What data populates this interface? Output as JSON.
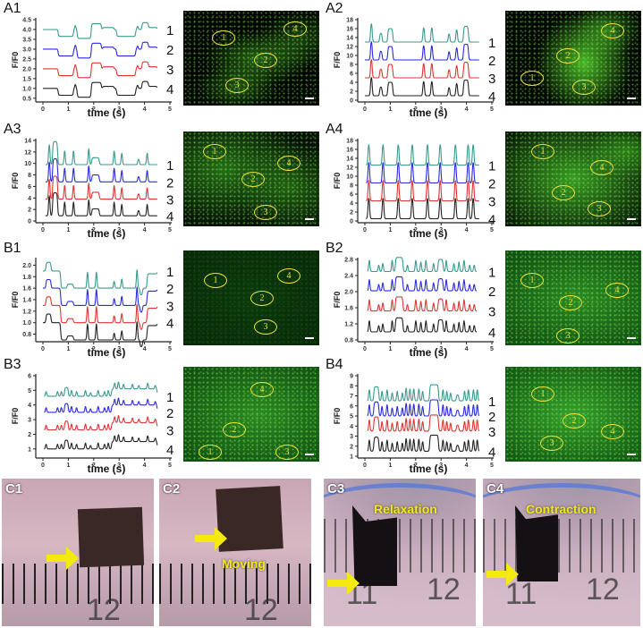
{
  "chart_data": [
    {
      "panel": "A1",
      "type": "line",
      "xlabel": "time (s)",
      "ylabel": "F/F0",
      "xlim": [
        0,
        5
      ],
      "xticks": [
        0,
        1,
        2,
        3,
        4,
        5
      ],
      "ylim": [
        0.4,
        4.5
      ],
      "yticks": [
        "0.5",
        "1.0",
        "1.5",
        "2.0",
        "2.5",
        "3.0",
        "3.5",
        "4.0",
        "4.5"
      ],
      "time_range": [
        0,
        4.5
      ],
      "series": [
        {
          "name": "1",
          "color": "#3a9a8e",
          "baseline": 4.0
        },
        {
          "name": "2",
          "color": "#2a2ae0",
          "baseline": 3.0
        },
        {
          "name": "3",
          "color": "#e03434",
          "baseline": 2.0
        },
        {
          "name": "4",
          "color": "#222222",
          "baseline": 1.0
        }
      ],
      "events_start_delta_duration": [
        [
          0.6,
          -0.35,
          0.6
        ],
        [
          1.25,
          0.25,
          0.05
        ],
        [
          1.35,
          -0.45,
          0.55
        ],
        [
          1.9,
          0.3,
          0.4
        ],
        [
          2.35,
          0.1,
          0.45
        ],
        [
          2.9,
          -0.35,
          0.75
        ],
        [
          3.7,
          0.2,
          0.05
        ],
        [
          3.9,
          0.35,
          0.25
        ],
        [
          4.15,
          0.1,
          0.35
        ]
      ],
      "image": {
        "rois": [
          "1",
          "2",
          "3",
          "4"
        ],
        "brightness": "dim"
      }
    },
    {
      "panel": "A2",
      "type": "line",
      "xlabel": "time (s)",
      "ylabel": "F/F0",
      "xlim": [
        0,
        5
      ],
      "xticks": [
        0,
        1,
        2,
        3,
        4,
        5
      ],
      "ylim": [
        0,
        18
      ],
      "yticks": [
        "0",
        "2",
        "4",
        "6",
        "8",
        "10",
        "12",
        "14",
        "16",
        "18"
      ],
      "time_range": [
        0,
        4.5
      ],
      "series": [
        {
          "name": "1",
          "color": "#3a9a8e",
          "baseline": 13
        },
        {
          "name": "2",
          "color": "#2a2ae0",
          "baseline": 9
        },
        {
          "name": "3",
          "color": "#e03434",
          "baseline": 5
        },
        {
          "name": "4",
          "color": "#222222",
          "baseline": 1
        }
      ],
      "events_start_delta_duration": [
        [
          0.22,
          4.5,
          0.07
        ],
        [
          0.58,
          2,
          0.1
        ],
        [
          0.9,
          3,
          0.2
        ],
        [
          2.28,
          3.5,
          0.07
        ],
        [
          2.6,
          3.5,
          0.07
        ],
        [
          3.28,
          2,
          0.07
        ],
        [
          3.58,
          3,
          0.07
        ],
        [
          3.88,
          3.5,
          0.2
        ]
      ],
      "image": {
        "rois": [
          "1",
          "2",
          "3",
          "4"
        ],
        "brightness": "patchy"
      }
    },
    {
      "panel": "A3",
      "type": "line",
      "xlabel": "time (s)",
      "ylabel": "F/F0",
      "xlim": [
        0,
        5
      ],
      "xticks": [
        0,
        1,
        2,
        3,
        4,
        5
      ],
      "ylim": [
        0,
        14
      ],
      "yticks": [
        "0",
        "2",
        "4",
        "6",
        "8",
        "10",
        "12",
        "14"
      ],
      "time_range": [
        0.1,
        4.5
      ],
      "series": [
        {
          "name": "1",
          "color": "#3a9a8e",
          "baseline": 9.8
        },
        {
          "name": "2",
          "color": "#2a2ae0",
          "baseline": 6.8
        },
        {
          "name": "3",
          "color": "#e03434",
          "baseline": 3.8
        },
        {
          "name": "4",
          "color": "#222222",
          "baseline": 0.9
        }
      ],
      "events_start_delta_duration": [
        [
          0.22,
          4,
          0.06
        ],
        [
          0.38,
          4,
          0.2
        ],
        [
          0.83,
          3,
          0.05
        ],
        [
          1.18,
          3,
          0.05
        ],
        [
          1.78,
          3.5,
          0.05
        ],
        [
          1.92,
          1.2,
          0.3
        ],
        [
          2.78,
          3,
          0.05
        ],
        [
          3.08,
          2.5,
          0.05
        ],
        [
          3.73,
          1,
          0.07
        ],
        [
          4.08,
          2.5,
          0.05
        ]
      ],
      "image": {
        "rois": [
          "1",
          "2",
          "3",
          "4"
        ],
        "brightness": "medium"
      }
    },
    {
      "panel": "A4",
      "type": "line",
      "xlabel": "time (s)",
      "ylabel": "F/F0",
      "xlim": [
        0,
        5
      ],
      "xticks": [
        0,
        1,
        2,
        3,
        4,
        5
      ],
      "ylim": [
        0,
        18
      ],
      "yticks": [
        "0",
        "2",
        "4",
        "6",
        "8",
        "10",
        "12",
        "14",
        "16",
        "18"
      ],
      "time_range": [
        0.05,
        4.5
      ],
      "series": [
        {
          "name": "1",
          "color": "#3a9a8e",
          "baseline": 12.5
        },
        {
          "name": "2",
          "color": "#2a2ae0",
          "baseline": 8.5
        },
        {
          "name": "3",
          "color": "#e03434",
          "baseline": 4.5
        },
        {
          "name": "4",
          "color": "#222222",
          "baseline": 0.5
        }
      ],
      "events_start_delta_duration": [
        [
          0.12,
          5,
          0.07
        ],
        [
          0.68,
          5,
          0.07
        ],
        [
          1.28,
          5,
          0.07
        ],
        [
          1.83,
          5,
          0.07
        ],
        [
          2.43,
          5,
          0.07
        ],
        [
          2.93,
          5,
          0.07
        ],
        [
          3.53,
          5,
          0.07
        ],
        [
          4.03,
          5,
          0.07
        ],
        [
          4.23,
          5,
          0.07
        ]
      ],
      "image": {
        "rois": [
          "1",
          "2",
          "3",
          "4"
        ],
        "brightness": "bright"
      }
    },
    {
      "panel": "B1",
      "type": "line",
      "xlabel": "time (s)",
      "ylabel": "F/F0",
      "xlim": [
        0,
        5
      ],
      "xticks": [
        0,
        1,
        2,
        3,
        4,
        5
      ],
      "ylim": [
        0.7,
        2.1
      ],
      "yticks": [
        "0.8",
        "1.0",
        "1.2",
        "1.4",
        "1.6",
        "1.8",
        "2.0"
      ],
      "time_range": [
        0,
        4.5
      ],
      "series": [
        {
          "name": "1",
          "color": "#3a9a8e",
          "baseline": 1.9
        },
        {
          "name": "2",
          "color": "#2a2ae0",
          "baseline": 1.6
        },
        {
          "name": "3",
          "color": "#e03434",
          "baseline": 1.3
        },
        {
          "name": "4",
          "color": "#222222",
          "baseline": 1.0
        }
      ],
      "events_start_delta_duration": [
        [
          0.12,
          0.15,
          0.2
        ],
        [
          0.7,
          -0.3,
          3.4
        ],
        [
          0.95,
          0.07,
          0.25
        ],
        [
          1.73,
          0.35,
          0.05
        ],
        [
          2.08,
          0.35,
          0.05
        ],
        [
          2.78,
          0.15,
          0.05
        ],
        [
          3.08,
          0.2,
          0.05
        ],
        [
          3.68,
          0.4,
          0.05
        ],
        [
          3.82,
          -0.12,
          0.1
        ],
        [
          4.1,
          -0.05,
          0.4
        ]
      ],
      "image": {
        "rois": [
          "1",
          "2",
          "3",
          "4"
        ],
        "brightness": "very-dim"
      }
    },
    {
      "panel": "B2",
      "type": "line",
      "xlabel": "time (s)",
      "ylabel": "F/F0",
      "xlim": [
        0,
        5
      ],
      "xticks": [
        0,
        1,
        2,
        3,
        4,
        5
      ],
      "ylim": [
        0.8,
        2.8
      ],
      "yticks": [
        "0.8",
        "1.2",
        "1.6",
        "2.0",
        "2.4",
        "2.8"
      ],
      "time_range": [
        0.1,
        4.4
      ],
      "series": [
        {
          "name": "1",
          "color": "#3a9a8e",
          "baseline": 2.5
        },
        {
          "name": "2",
          "color": "#2a2ae0",
          "baseline": 2.02
        },
        {
          "name": "3",
          "color": "#e03434",
          "baseline": 1.52
        },
        {
          "name": "4",
          "color": "#222222",
          "baseline": 1.0
        }
      ],
      "events_start_delta_duration": [
        [
          0.15,
          0.35,
          0.05
        ],
        [
          0.52,
          0.2,
          0.05
        ],
        [
          0.68,
          0.25,
          0.05
        ],
        [
          1.05,
          0.35,
          0.05
        ],
        [
          1.2,
          0.35,
          0.3
        ],
        [
          1.65,
          0.2,
          0.05
        ],
        [
          1.98,
          0.35,
          0.05
        ],
        [
          2.18,
          0.3,
          0.05
        ],
        [
          2.38,
          0.35,
          0.05
        ],
        [
          2.68,
          0.25,
          0.05
        ],
        [
          2.88,
          0.3,
          0.2
        ],
        [
          3.18,
          0.35,
          0.05
        ],
        [
          3.48,
          0.25,
          0.05
        ],
        [
          3.68,
          0.3,
          0.05
        ],
        [
          3.88,
          0.35,
          0.05
        ],
        [
          4.1,
          0.2,
          0.05
        ],
        [
          4.28,
          0.2,
          0.05
        ]
      ],
      "image": {
        "rois": [
          "1",
          "2",
          "3",
          "4"
        ],
        "brightness": "medium-uniform"
      }
    },
    {
      "panel": "B3",
      "type": "line",
      "xlabel": "time (s)",
      "ylabel": "F/F0",
      "xlim": [
        0,
        5
      ],
      "xticks": [
        0,
        1,
        2,
        3,
        4,
        5
      ],
      "ylim": [
        0.5,
        6
      ],
      "yticks": [
        "1",
        "2",
        "3",
        "4",
        "5",
        "6"
      ],
      "time_range": [
        0.05,
        4.5
      ],
      "series": [
        {
          "name": "1",
          "color": "#3a9a8e",
          "baseline": 4.6
        },
        {
          "name": "2",
          "color": "#2a2ae0",
          "baseline": 3.5
        },
        {
          "name": "3",
          "color": "#e03434",
          "baseline": 2.3
        },
        {
          "name": "4",
          "color": "#222222",
          "baseline": 1.0
        }
      ],
      "events_start_delta_duration": [
        [
          0.1,
          0.4,
          0.05
        ],
        [
          0.55,
          0.4,
          0.05
        ],
        [
          0.7,
          0.4,
          0.05
        ],
        [
          0.85,
          0.6,
          0.15
        ],
        [
          1.1,
          0.5,
          0.05
        ],
        [
          1.3,
          0.4,
          0.05
        ],
        [
          1.65,
          0.5,
          0.05
        ],
        [
          1.85,
          0.3,
          0.05
        ],
        [
          2.15,
          0.5,
          0.05
        ],
        [
          2.4,
          0.4,
          0.05
        ],
        [
          2.55,
          0.5,
          0.05
        ],
        [
          2.7,
          0.5,
          1.8
        ],
        [
          2.8,
          0.5,
          0.05
        ],
        [
          2.95,
          0.6,
          0.05
        ],
        [
          3.15,
          0.4,
          0.05
        ],
        [
          3.5,
          0.4,
          0.05
        ],
        [
          3.75,
          0.3,
          0.05
        ],
        [
          4.1,
          0.5,
          0.05
        ],
        [
          4.4,
          0.3,
          0.05
        ]
      ],
      "image": {
        "rois": [
          "1",
          "2",
          "3",
          "4"
        ],
        "brightness": "medium-uniform"
      }
    },
    {
      "panel": "B4",
      "type": "line",
      "xlabel": "time (s)",
      "ylabel": "F/F0",
      "xlim": [
        0,
        5
      ],
      "xticks": [
        0,
        1,
        2,
        3,
        4,
        5
      ],
      "ylim": [
        1,
        9
      ],
      "yticks": [
        "1",
        "2",
        "3",
        "4",
        "5",
        "6",
        "7",
        "8",
        "9"
      ],
      "time_range": [
        0.1,
        4.5
      ],
      "series": [
        {
          "name": "1",
          "color": "#3a9a8e",
          "baseline": 6.5
        },
        {
          "name": "2",
          "color": "#2a2ae0",
          "baseline": 5.0
        },
        {
          "name": "3",
          "color": "#e03434",
          "baseline": 3.5
        },
        {
          "name": "4",
          "color": "#222222",
          "baseline": 1.5
        }
      ],
      "events_start_delta_duration": [
        [
          0.15,
          1.4,
          0.05
        ],
        [
          0.35,
          1.4,
          0.2
        ],
        [
          0.65,
          1.2,
          0.05
        ],
        [
          0.85,
          1.4,
          0.05
        ],
        [
          1.05,
          1.0,
          0.05
        ],
        [
          1.25,
          1.2,
          0.05
        ],
        [
          1.45,
          1.0,
          0.05
        ],
        [
          1.6,
          1.6,
          0.05
        ],
        [
          1.75,
          1.5,
          0.05
        ],
        [
          1.9,
          1.5,
          0.05
        ],
        [
          2.1,
          1.5,
          0.05
        ],
        [
          2.25,
          1.2,
          0.05
        ],
        [
          2.55,
          1.6,
          0.35
        ],
        [
          3.05,
          1.4,
          0.05
        ],
        [
          3.2,
          1.2,
          0.05
        ],
        [
          3.35,
          1.0,
          0.05
        ],
        [
          3.6,
          0.6,
          0.1
        ],
        [
          3.9,
          1.2,
          0.05
        ],
        [
          4.05,
          1.4,
          0.05
        ],
        [
          4.25,
          1.4,
          0.05
        ],
        [
          4.4,
          1.4,
          0.05
        ]
      ],
      "image": {
        "rois": [
          "1",
          "2",
          "3",
          "4"
        ],
        "brightness": "bright-uniform"
      }
    }
  ],
  "photos": [
    {
      "label": "C1",
      "ruler_number": "12"
    },
    {
      "label": "C2",
      "caption": "Moving",
      "ruler_number": "12"
    },
    {
      "label": "C3",
      "caption": "Relaxation",
      "ruler_numbers": [
        "11",
        "12"
      ]
    },
    {
      "label": "C4",
      "caption": "Contraction",
      "ruler_numbers": [
        "11",
        "12"
      ]
    }
  ],
  "colors": {
    "roi": "#e8e23a",
    "arrow": "#f4ea10",
    "series1": "#3a9a8e",
    "series2": "#2a2ae0",
    "series3": "#e03434",
    "series4": "#222222"
  }
}
